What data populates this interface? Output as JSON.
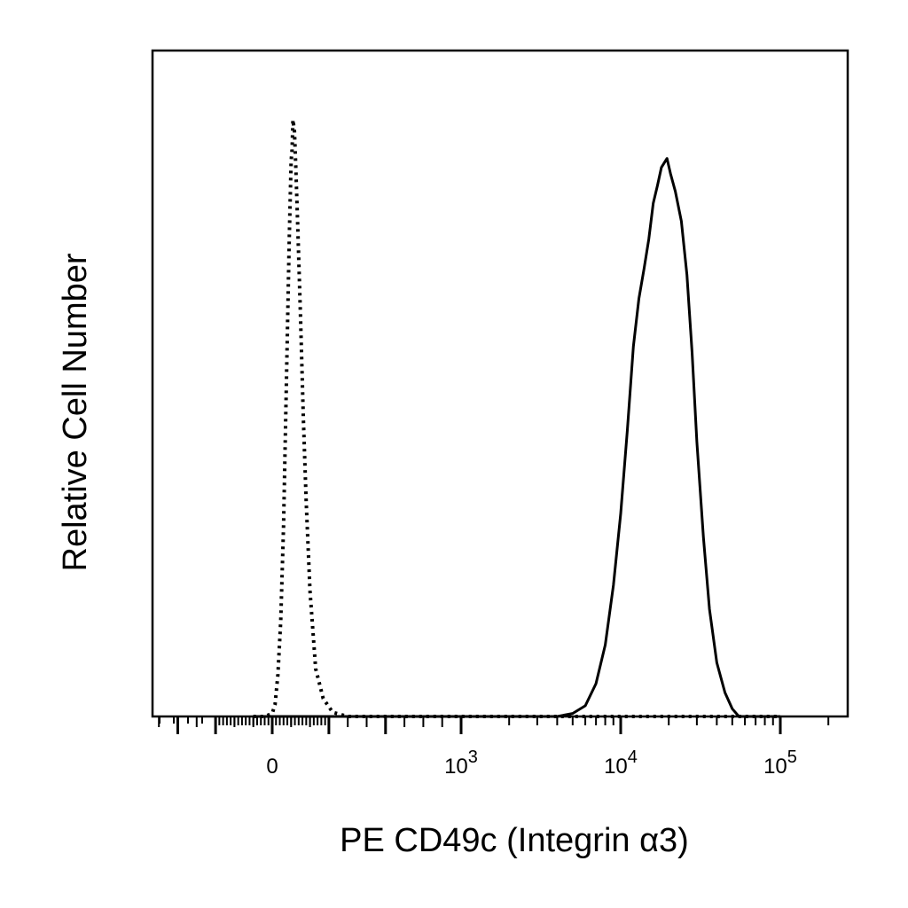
{
  "chart_data": {
    "type": "line",
    "title": "",
    "xlabel": "PE CD49c (Integrin α3)",
    "ylabel": "Relative Cell Number",
    "x_scale": "biexponential",
    "x_ticks": [
      {
        "value": 0,
        "base": "0",
        "exp": ""
      },
      {
        "value": 1000,
        "base": "10",
        "exp": "3"
      },
      {
        "value": 10000,
        "base": "10",
        "exp": "4"
      },
      {
        "value": 100000,
        "base": "10",
        "exp": "5"
      }
    ],
    "ylim": [
      0,
      100
    ],
    "grid": false,
    "legend": "none",
    "series": [
      {
        "style": "dotted",
        "color": "#000000",
        "points": [
          [
            -100,
            0
          ],
          [
            -40,
            0
          ],
          [
            0,
            0.5
          ],
          [
            15,
            2
          ],
          [
            30,
            7
          ],
          [
            45,
            16
          ],
          [
            60,
            32
          ],
          [
            75,
            56
          ],
          [
            90,
            80
          ],
          [
            100,
            93
          ],
          [
            105,
            95
          ],
          [
            110,
            100
          ],
          [
            118,
            98
          ],
          [
            125,
            92
          ],
          [
            135,
            82
          ],
          [
            150,
            67
          ],
          [
            165,
            50
          ],
          [
            180,
            36
          ],
          [
            200,
            21
          ],
          [
            230,
            8
          ],
          [
            270,
            3
          ],
          [
            320,
            0.7
          ],
          [
            400,
            0
          ],
          [
            100000,
            0
          ]
        ]
      },
      {
        "style": "solid",
        "color": "#000000",
        "points": [
          [
            -100,
            0
          ],
          [
            4000,
            0
          ],
          [
            5000,
            0.5
          ],
          [
            6000,
            1.8
          ],
          [
            7000,
            5.5
          ],
          [
            8000,
            12
          ],
          [
            9000,
            22
          ],
          [
            10000,
            34
          ],
          [
            11000,
            48
          ],
          [
            12000,
            62
          ],
          [
            13000,
            70
          ],
          [
            14000,
            75
          ],
          [
            15000,
            80
          ],
          [
            16000,
            86
          ],
          [
            17000,
            89
          ],
          [
            18000,
            92
          ],
          [
            19500,
            93.5
          ],
          [
            20500,
            91
          ],
          [
            22000,
            88
          ],
          [
            24000,
            83
          ],
          [
            26000,
            74
          ],
          [
            28000,
            61
          ],
          [
            30000,
            46
          ],
          [
            33000,
            30
          ],
          [
            36000,
            18
          ],
          [
            40000,
            9
          ],
          [
            45000,
            4
          ],
          [
            50000,
            1.3
          ],
          [
            55000,
            0
          ],
          [
            100000,
            0
          ]
        ]
      }
    ]
  }
}
